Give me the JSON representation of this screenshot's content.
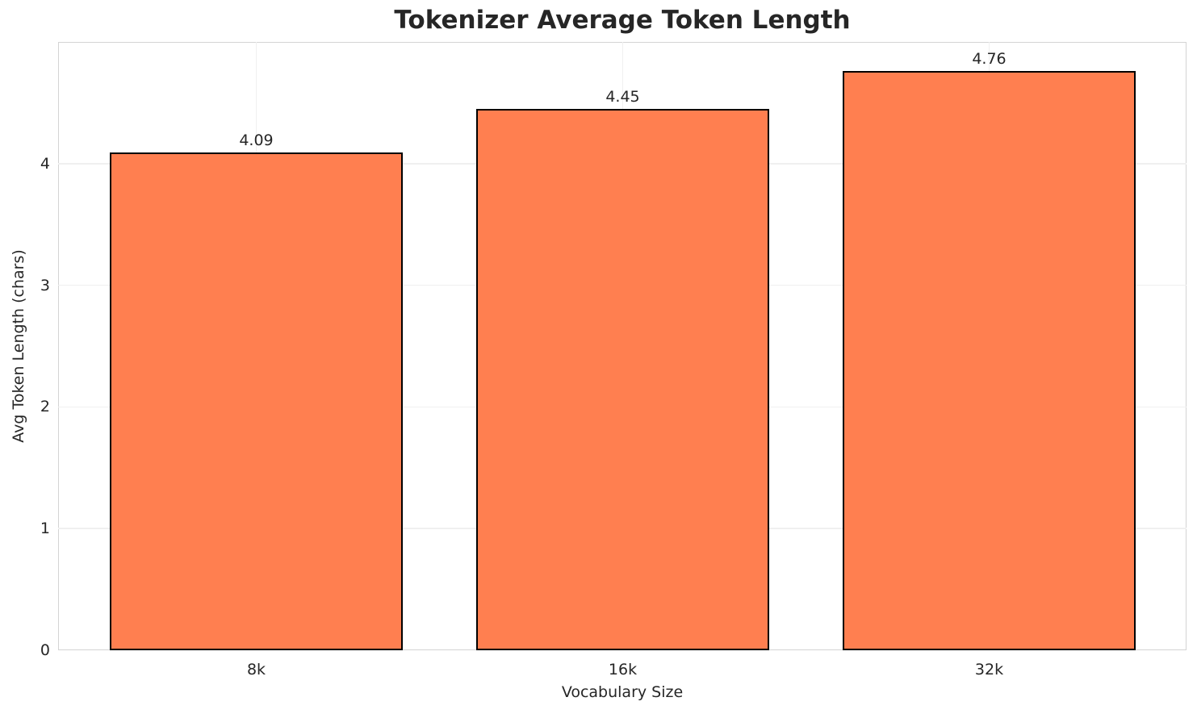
{
  "chart_data": {
    "type": "bar",
    "title": "Tokenizer Average Token Length",
    "xlabel": "Vocabulary Size",
    "ylabel": "Avg Token Length (chars)",
    "categories": [
      "8k",
      "16k",
      "32k"
    ],
    "values": [
      4.09,
      4.45,
      4.76
    ],
    "bar_labels": [
      "4.09",
      "4.45",
      "4.76"
    ],
    "yticks": [
      0,
      1,
      2,
      3,
      4
    ],
    "ylim": [
      0,
      5
    ],
    "grid": true,
    "legend_position": "none",
    "colors": {
      "bar_fill": "#FF7F50",
      "bar_edge": "#000000",
      "grid_line": "#F0F0F0",
      "axis_spine": "#D4D4D4",
      "text": "#262626",
      "background": "#FFFFFF"
    }
  }
}
